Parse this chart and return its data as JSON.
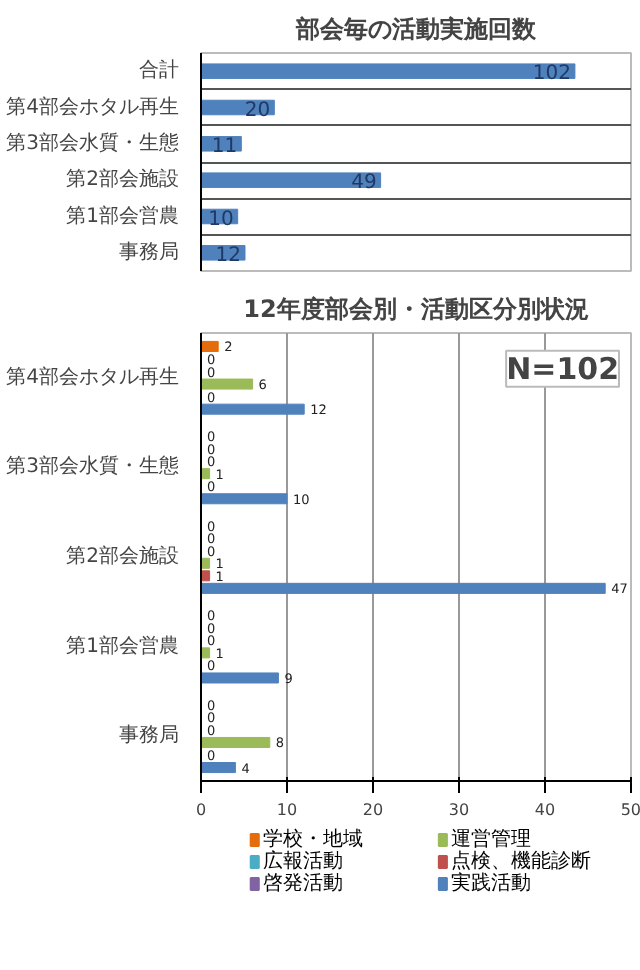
{
  "chart_data": [
    {
      "type": "bar",
      "orientation": "horizontal",
      "title": "部会毎の活動実施回数",
      "categories": [
        "合計",
        "第4部会ホタル再生",
        "第3部会水質・生態",
        "第2部会施設",
        "第1部会営農",
        "事務局"
      ],
      "values": [
        102,
        20,
        11,
        49,
        10,
        12
      ],
      "color": "#4f81bd",
      "data_labels": true,
      "grid": "y"
    },
    {
      "type": "bar",
      "orientation": "horizontal",
      "title": "12年度部会別・活動区分別状況",
      "categories": [
        "第4部会ホタル再生",
        "第3部会水質・生態",
        "第2部会施設",
        "第1部会営農",
        "事務局"
      ],
      "series": [
        {
          "name": "学校・地域",
          "color": "#e46c0a",
          "values": [
            2,
            0,
            0,
            0,
            0
          ]
        },
        {
          "name": "広報活動",
          "color": "#4bacc6",
          "values": [
            0,
            0,
            0,
            0,
            0
          ]
        },
        {
          "name": "啓発活動",
          "color": "#8064a2",
          "values": [
            0,
            0,
            0,
            0,
            0
          ]
        },
        {
          "name": "運営管理",
          "color": "#9bbb59",
          "values": [
            6,
            1,
            1,
            1,
            8
          ]
        },
        {
          "name": "点検、機能診断",
          "color": "#c0504d",
          "values": [
            0,
            0,
            1,
            0,
            0
          ]
        },
        {
          "name": "実践活動",
          "color": "#4f81bd",
          "values": [
            12,
            10,
            47,
            9,
            4
          ]
        }
      ],
      "xlim": [
        0,
        50
      ],
      "xticks": [
        0,
        10,
        20,
        30,
        40,
        50
      ],
      "grid": "x",
      "data_labels": true,
      "legend": "bottom",
      "annotations": [
        "N=102"
      ]
    }
  ]
}
